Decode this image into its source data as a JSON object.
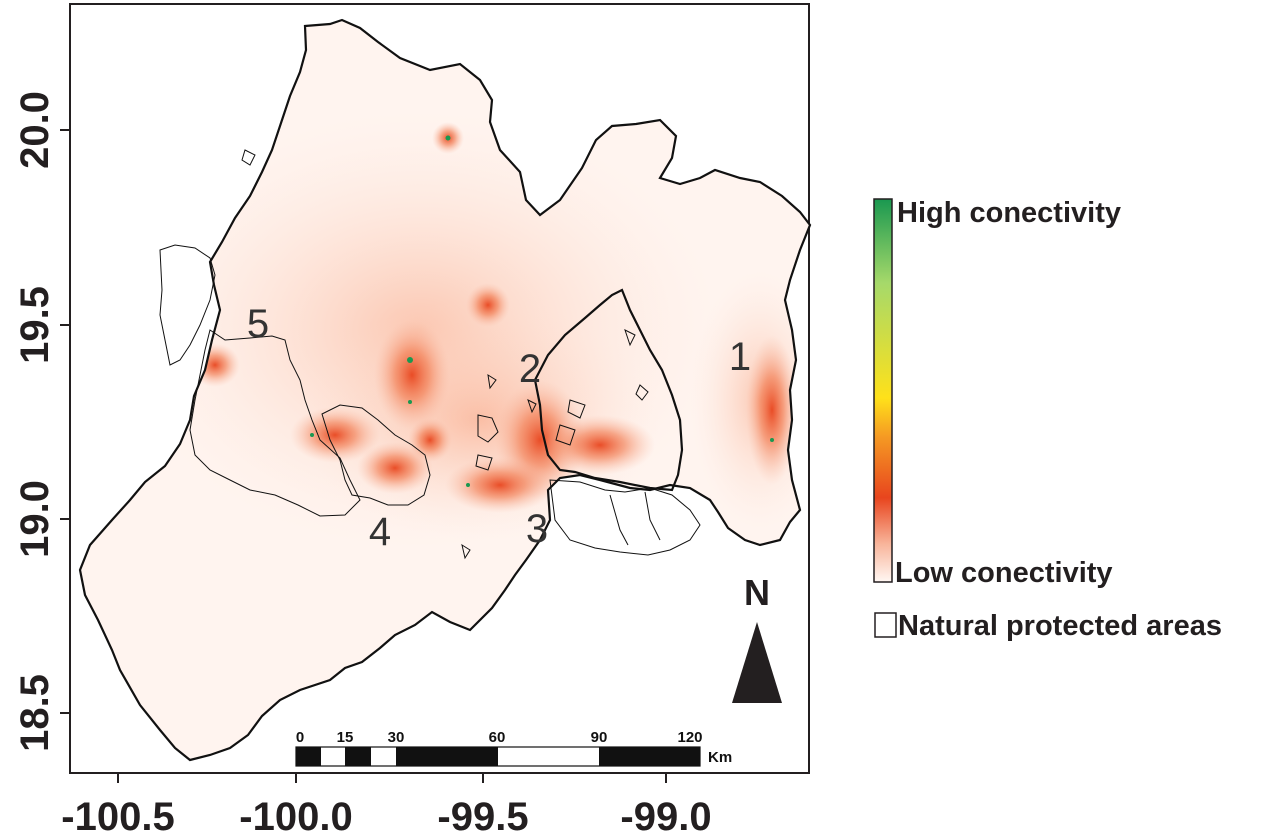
{
  "map": {
    "x_ticks": [
      "-100.5",
      "-100.0",
      "-99.5",
      "-99.0"
    ],
    "y_ticks": [
      "20.0",
      "19.5",
      "19.0",
      "18.5"
    ],
    "region_labels": [
      "1",
      "2",
      "3",
      "4",
      "5"
    ],
    "scale_bar": {
      "ticks": [
        "0",
        "15",
        "30",
        "60",
        "90",
        "120"
      ],
      "unit": "Km"
    },
    "north_label": "N"
  },
  "legend": {
    "high_label": "High conectivity",
    "low_label": "Low conectivity",
    "protected_label": "Natural protected areas",
    "gradient_colors": [
      "#1a9850",
      "#a6d96a",
      "#ffe11a",
      "#f59a23",
      "#e8451e",
      "#f8b49a",
      "#fff7f3"
    ]
  }
}
